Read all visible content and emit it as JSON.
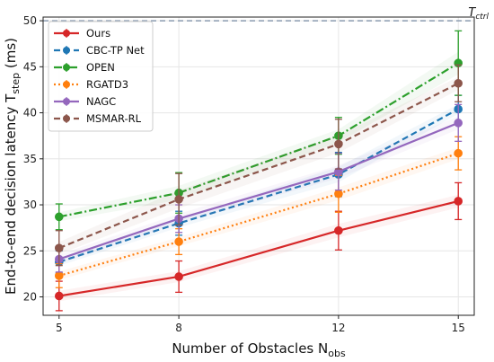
{
  "chart_data": {
    "type": "line",
    "xlabel": "Number of Obstacles N",
    "xlabel_sub": "obs",
    "ylabel": "End-to-end decision latency T",
    "ylabel_sub": "step",
    "ylabel_unit": " (ms)",
    "x": [
      5,
      8,
      12,
      15
    ],
    "xlim": [
      4.6,
      15.4
    ],
    "ylim": [
      18,
      50.4
    ],
    "yticks": [
      20,
      25,
      30,
      35,
      40,
      45,
      50
    ],
    "grid": true,
    "legend_position": "top-left",
    "reference_line": {
      "y": 50,
      "label": "T",
      "label_sub": "ctrl",
      "color": "#8a9bb0"
    },
    "series": [
      {
        "name": "Ours",
        "color": "#d62728",
        "dash": "solid",
        "width": 2.2,
        "values": [
          20.1,
          22.2,
          27.2,
          30.4
        ],
        "errors": [
          1.6,
          1.7,
          2.1,
          2.0
        ]
      },
      {
        "name": "CBC-TP Net",
        "color": "#1f77b4",
        "dash": "dashed",
        "width": 2.2,
        "values": [
          23.8,
          28.0,
          33.3,
          40.4
        ],
        "errors": [
          1.2,
          1.3,
          2.4,
          1.5
        ]
      },
      {
        "name": "OPEN",
        "color": "#2ca02c",
        "dash": "dashdot",
        "width": 2.2,
        "values": [
          28.7,
          31.3,
          37.5,
          45.4
        ],
        "errors": [
          1.4,
          2.2,
          2.0,
          3.5
        ]
      },
      {
        "name": "RGATD3",
        "color": "#ff7f0e",
        "dash": "dotted",
        "width": 2.2,
        "values": [
          22.3,
          26.0,
          31.2,
          35.6
        ],
        "errors": [
          1.3,
          1.4,
          2.0,
          1.8
        ]
      },
      {
        "name": "NAGC",
        "color": "#9467bd",
        "dash": "solid",
        "width": 2.2,
        "values": [
          24.1,
          28.5,
          33.6,
          38.9
        ],
        "errors": [
          1.4,
          1.5,
          2.0,
          2.0
        ]
      },
      {
        "name": "MSMAR-RL",
        "color": "#8c564b",
        "dash": "dashed",
        "width": 2.2,
        "values": [
          25.3,
          30.6,
          36.6,
          43.2
        ],
        "errors": [
          1.9,
          2.8,
          2.7,
          2.0
        ]
      }
    ]
  }
}
